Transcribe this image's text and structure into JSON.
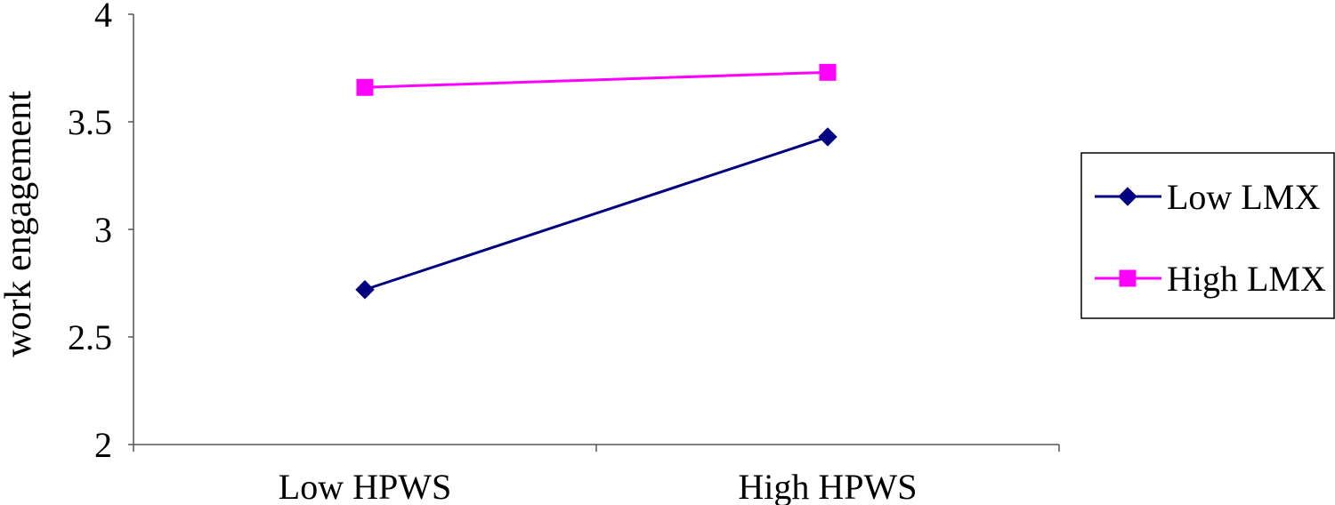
{
  "chart_data": {
    "type": "line",
    "title": "",
    "xlabel": "",
    "ylabel": "work engagement",
    "categories": [
      "Low HPWS",
      "High HPWS"
    ],
    "ylim": [
      2,
      4
    ],
    "yticks": [
      "2",
      "2.5",
      "3",
      "3.5",
      "4"
    ],
    "grid": false,
    "legend_position": "right",
    "series": [
      {
        "name": "Low LMX",
        "values": [
          2.72,
          3.43
        ],
        "color": "#000080",
        "marker": "diamond"
      },
      {
        "name": "High LMX",
        "values": [
          3.66,
          3.73
        ],
        "color": "#ff00ff",
        "marker": "square"
      }
    ]
  }
}
